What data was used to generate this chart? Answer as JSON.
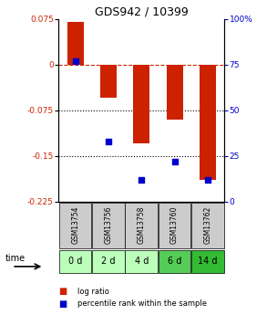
{
  "title": "GDS942 / 10399",
  "samples": [
    "GSM13754",
    "GSM13756",
    "GSM13758",
    "GSM13760",
    "GSM13762"
  ],
  "time_labels": [
    "0 d",
    "2 d",
    "4 d",
    "6 d",
    "14 d"
  ],
  "log_ratio": [
    0.07,
    -0.055,
    -0.13,
    -0.09,
    -0.19
  ],
  "percentile_rank": [
    77,
    33,
    12,
    22,
    12
  ],
  "ylim": [
    -0.225,
    0.075
  ],
  "yticks_left": [
    0.075,
    0,
    -0.075,
    -0.15,
    -0.225
  ],
  "yticks_right": [
    100,
    75,
    50,
    25,
    0
  ],
  "bar_color": "#cc2200",
  "dot_color": "#0000cc",
  "background_color": "#ffffff",
  "gsm_bg": "#cccccc",
  "time_bg_light": "#bbffbb",
  "time_bg_dark": "#44cc44",
  "time_bg_colors": [
    "#bbffbb",
    "#bbffbb",
    "#bbffbb",
    "#55cc55",
    "#33bb33"
  ],
  "bar_width": 0.5
}
